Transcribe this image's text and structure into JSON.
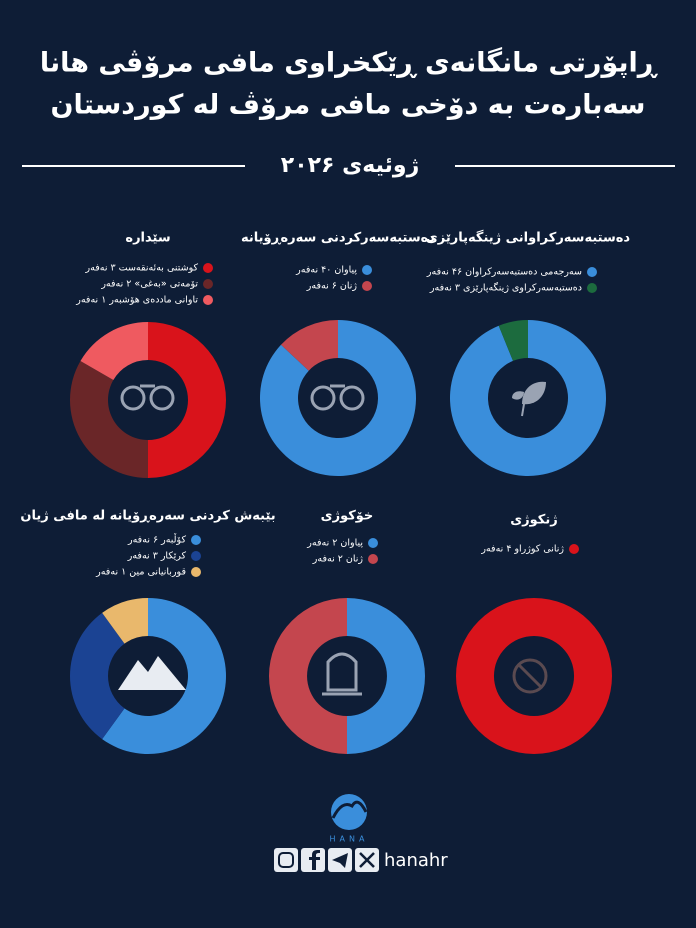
{
  "header": {
    "title_lines": [
      "ڕاپۆرتی مانگانەی ڕێکخراوی مافی مرۆڤی هانا",
      "سەبارەت بە دۆخی مافی مرۆڤ لە کوردستان"
    ],
    "subtitle": "ژوئیەی ۲۰۲۶"
  },
  "chart_data": [
    {
      "type": "donut",
      "title": "سێدارە",
      "categories": [
        "کوشتنی بەئەنقەست ۳ نەفەر",
        "تۆمەتی «بەغی» ۲ نەفەر",
        "تاوانی ماددەی هۆشبەر ۱ نەفەر"
      ],
      "values": [
        3,
        2,
        1
      ],
      "colors": [
        "#d9131b",
        "#6a2628",
        "#ef5a60"
      ]
    },
    {
      "type": "donut",
      "title": "دەستبەسەرکردنی سەرەڕۆیانە",
      "categories": [
        "پیاوان ۴۰ نەفەر",
        "ژنان ۶ نەفەر"
      ],
      "values": [
        40,
        6
      ],
      "colors": [
        "#3a8edb",
        "#c4464e"
      ]
    },
    {
      "type": "donut",
      "title": "دەستبەسەرکراوانی ژینگەپارێزی",
      "categories": [
        "سەرجەمی دەستبەسەرکراوان ۴۶ نەفەر",
        "دەستبەسەرکراوی ژینگەپارێزی ۳ نەفەر"
      ],
      "values": [
        46,
        3
      ],
      "colors": [
        "#3a8edb",
        "#1c6b3e"
      ]
    },
    {
      "type": "donut",
      "title": "بێبەش کردنی سەرەڕۆیانە لە مافی ژیان",
      "categories": [
        "کۆڵبەر ۶ نەفەر",
        "کرێکار ۳ نەفەر",
        "قوربانیانی مین ۱ نەفەر"
      ],
      "values": [
        6,
        3,
        1
      ],
      "colors": [
        "#3a8edb",
        "#1b4393",
        "#e9b86c"
      ]
    },
    {
      "type": "donut",
      "title": "خۆکوژی",
      "categories": [
        "پیاوان ۲ نەفەر",
        "ژنان ۲ نەفەر"
      ],
      "values": [
        2,
        2
      ],
      "colors": [
        "#3a8edb",
        "#c4464e"
      ]
    },
    {
      "type": "donut",
      "title": "ژنکوژی",
      "categories": [
        "ژنانی کوژراو ۴ نەفەر"
      ],
      "values": [
        4
      ],
      "colors": [
        "#d9131b"
      ]
    }
  ],
  "footer": {
    "logo": "HANA",
    "handle": "hanahr"
  }
}
